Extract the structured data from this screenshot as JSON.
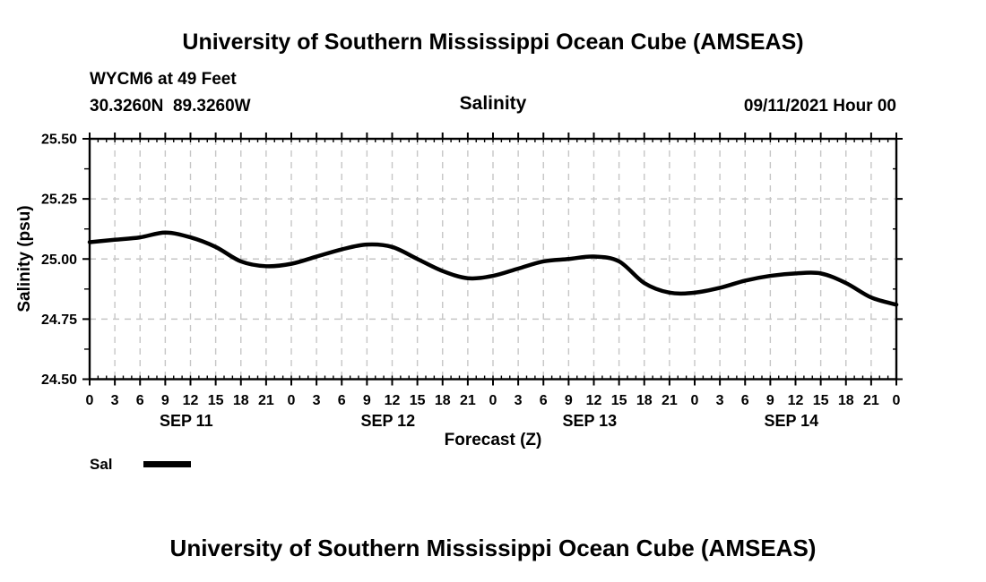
{
  "header": {
    "main_title": "University of Southern Mississippi Ocean Cube (AMSEAS)",
    "station_line": "WYCM6 at 49 Feet",
    "coords_line": "30.3260N  89.3260W",
    "panel_title": "Salinity",
    "run_datetime": "09/11/2021 Hour 00"
  },
  "footer": {
    "main_title": "University of Southern Mississippi Ocean Cube (AMSEAS)"
  },
  "chart_data": {
    "type": "line",
    "title": "Salinity",
    "xlabel": "Forecast (Z)",
    "ylabel": "Salinity (psu)",
    "ylim": [
      24.5,
      25.5
    ],
    "y_tick_values": [
      24.5,
      24.75,
      25.0,
      25.25,
      25.5
    ],
    "y_tick_labels": [
      "24.50",
      "24.75",
      "25.00",
      "25.25",
      "25.50"
    ],
    "y_minor_tick_step": 0.125,
    "x_hours_total": 96,
    "x_major_tick_step_hours": 3,
    "x_minor_tick_step_hours": 1,
    "x_tick_labels": [
      "0",
      "3",
      "6",
      "9",
      "12",
      "15",
      "18",
      "21",
      "0",
      "3",
      "6",
      "9",
      "12",
      "15",
      "18",
      "21",
      "0",
      "3",
      "6",
      "9",
      "12",
      "15",
      "18",
      "21",
      "0",
      "3",
      "6",
      "9",
      "12",
      "15",
      "18",
      "21",
      "0"
    ],
    "day_labels": [
      "SEP 11",
      "SEP 12",
      "SEP 13",
      "SEP 14"
    ],
    "grid": {
      "show": true,
      "style": "dashed",
      "color": "#c6c6c6"
    },
    "legend_position": "below-left",
    "axis_color": "#000000",
    "series": [
      {
        "name": "Sal",
        "color": "#000000",
        "x_hours": [
          0,
          3,
          6,
          9,
          12,
          15,
          18,
          21,
          24,
          27,
          30,
          33,
          36,
          39,
          42,
          45,
          48,
          51,
          54,
          57,
          60,
          63,
          66,
          69,
          72,
          75,
          78,
          81,
          84,
          87,
          90,
          93,
          96
        ],
        "values": [
          25.07,
          25.08,
          25.09,
          25.11,
          25.09,
          25.05,
          24.99,
          24.97,
          24.98,
          25.01,
          25.04,
          25.06,
          25.05,
          25.0,
          24.95,
          24.92,
          24.93,
          24.96,
          24.99,
          25.0,
          25.01,
          24.99,
          24.9,
          24.86,
          24.86,
          24.88,
          24.91,
          24.93,
          24.94,
          24.94,
          24.9,
          24.84,
          24.81
        ]
      }
    ]
  }
}
